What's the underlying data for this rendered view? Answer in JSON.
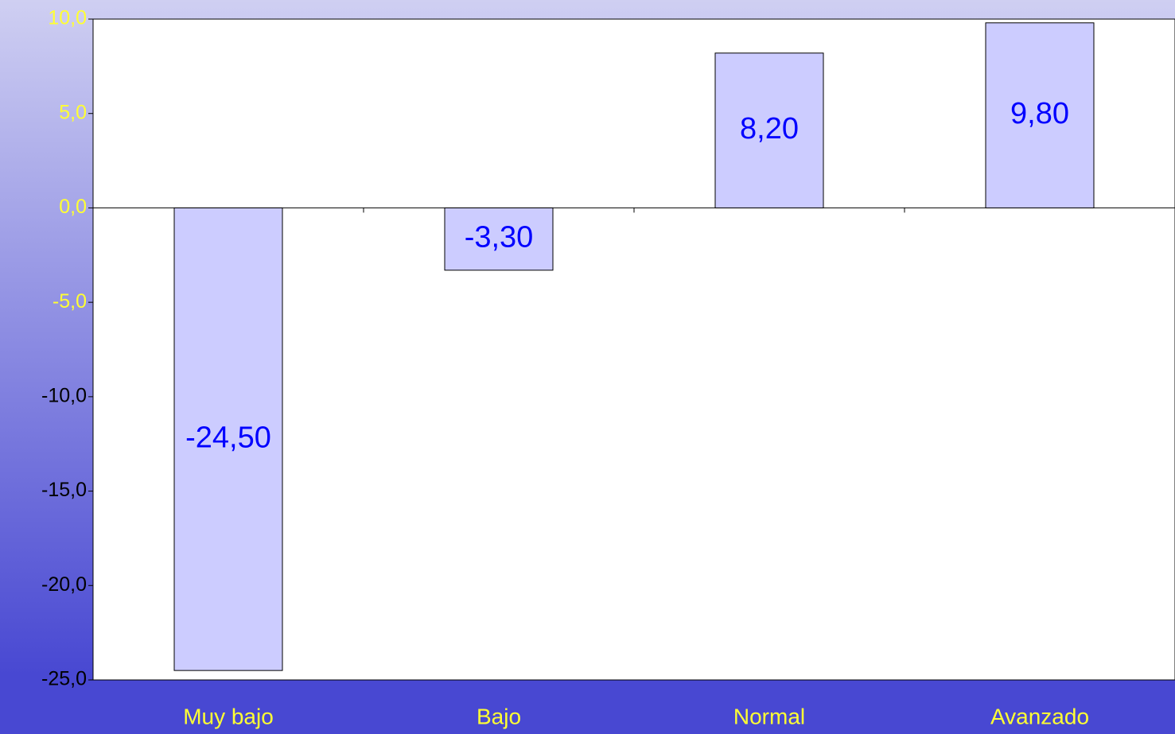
{
  "chart_data": {
    "type": "bar",
    "categories": [
      "Muy bajo",
      "Bajo",
      "Normal",
      "Avanzado"
    ],
    "values": [
      -24.5,
      -3.3,
      8.2,
      9.8
    ],
    "value_labels": [
      "-24,50",
      "-3,30",
      "8,20",
      "9,80"
    ],
    "color": "#ccccff",
    "ylim": [
      -25,
      10
    ],
    "yticks": [
      {
        "value": -25,
        "label": "-25,0"
      },
      {
        "value": -20,
        "label": "-20,0"
      },
      {
        "value": -15,
        "label": "-15,0"
      },
      {
        "value": -10,
        "label": "-10,0"
      },
      {
        "value": -5,
        "label": "-5,0"
      },
      {
        "value": 0,
        "label": "0,0"
      },
      {
        "value": 5,
        "label": "5,0"
      },
      {
        "value": 10,
        "label": "10,0"
      }
    ],
    "grid": false
  }
}
